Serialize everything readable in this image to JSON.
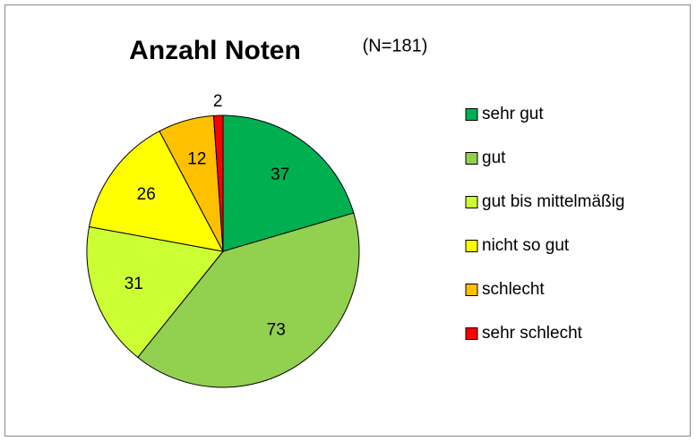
{
  "chart_data": {
    "type": "pie",
    "title": "Anzahl Noten",
    "subtitle": "(N=181)",
    "categories": [
      "sehr gut",
      "gut",
      "gut bis mittelmäßig",
      "nicht so gut",
      "schlecht",
      "sehr schlecht"
    ],
    "values": [
      37,
      73,
      31,
      26,
      12,
      2
    ],
    "colors": [
      "#00b050",
      "#92d050",
      "#ccff33",
      "#ffff00",
      "#ffc000",
      "#ff0000"
    ],
    "legend": "right"
  }
}
